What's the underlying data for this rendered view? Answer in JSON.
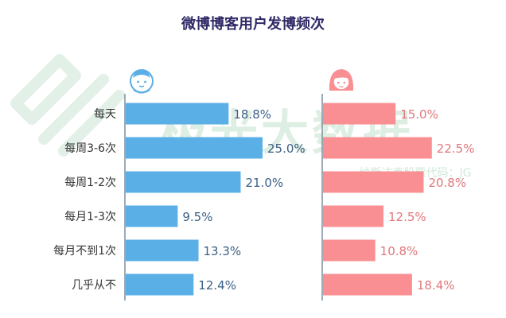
{
  "chart_data": {
    "type": "bar",
    "title": "微博博客用户发博频次",
    "categories": [
      "每天",
      "每周3-6次",
      "每周1-2次",
      "每月1-3次",
      "每月不到1次",
      "几乎从不"
    ],
    "series": [
      {
        "values": [
          18.8,
          25.0,
          21.0,
          9.5,
          13.3,
          12.4
        ],
        "value_labels": [
          "18.8%",
          "25.0%",
          "21.0%",
          "9.5%",
          "13.3%",
          "12.4%"
        ],
        "color": "#5aafe6",
        "label_color": "#3a5f86",
        "icon": "male-avatar-icon"
      },
      {
        "values": [
          15.0,
          22.5,
          20.8,
          12.5,
          10.8,
          18.4
        ],
        "value_labels": [
          "15.0%",
          "22.5%",
          "20.8%",
          "12.5%",
          "10.8%",
          "18.4%"
        ],
        "color": "#f98f93",
        "label_color": "#e0787c",
        "icon": "female-avatar-icon"
      }
    ],
    "xlim": [
      0,
      25
    ],
    "grid": false,
    "axis_color": "#7f8fa0"
  },
  "watermark": {
    "main_text": "极光大数据",
    "sub_text": "纳斯达克股票代码：JG",
    "color": "#63b07d"
  }
}
